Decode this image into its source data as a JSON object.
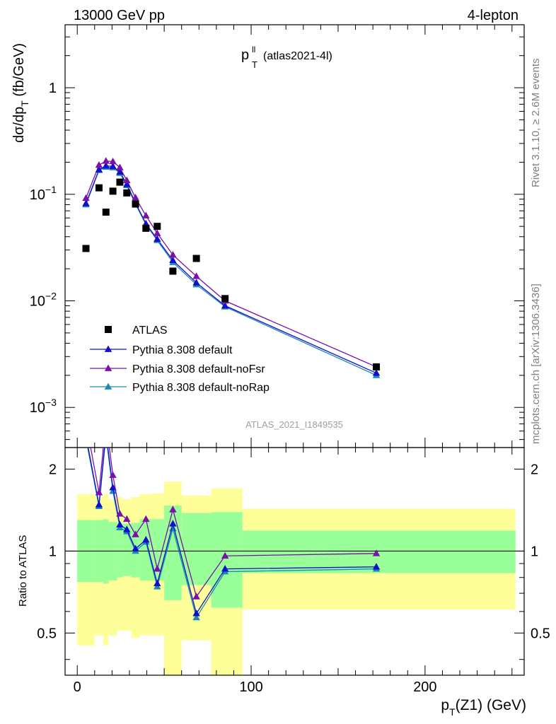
{
  "header": {
    "energy_label": "13000 GeV pp",
    "process_label": "4-lepton",
    "title_main": "p",
    "title_sup": "ll",
    "title_sub": "T",
    "title_suffix": "(atlas2021-4l)",
    "side_rivet": "Rivet 3.1.10, ≥ 2.6M events",
    "side_mcplots": "mcplots.cern.ch [arXiv:1306.3436]",
    "watermark": "ATLAS_2021_I1849535"
  },
  "colors": {
    "data": "#000000",
    "default": "#1010cc",
    "noFsr": "#7a10a8",
    "noRap": "#1a8ab0",
    "band_inner": "#99ff99",
    "band_outer": "#ffff99"
  },
  "chart_data": [
    {
      "type": "scatter",
      "panel": "main",
      "title": "p_T^ll (atlas2021-4l)",
      "xlabel": "p_T(Z1) (GeV)",
      "ylabel": "dσ/dp_T (fb/GeV)",
      "xlim": [
        -7,
        257
      ],
      "ylim": [
        0.00042,
        3.9
      ],
      "yscale": "log",
      "y_ticks": [
        "1",
        "10",
        "10",
        "10"
      ],
      "y_tick_exponents": [
        "",
        "−1",
        "−2",
        "−3"
      ],
      "y_tick_values": [
        1,
        0.1,
        0.01,
        0.001
      ],
      "legend_position": "lower-left",
      "series": [
        {
          "name": "ATLAS",
          "marker": "square",
          "x": [
            5,
            12.5,
            16.5,
            20.5,
            24.5,
            28.5,
            33.5,
            39.5,
            46,
            55,
            68.5,
            85,
            172
          ],
          "y": [
            0.031,
            0.115,
            0.068,
            0.107,
            0.13,
            0.103,
            0.081,
            0.048,
            0.05,
            0.019,
            0.025,
            0.0105,
            0.0024
          ]
        },
        {
          "name": "Pythia 8.308 default",
          "marker": "triangle",
          "x": [
            5,
            12.5,
            16.5,
            20.5,
            24.5,
            28.5,
            33.5,
            39.5,
            46,
            55,
            68.5,
            85,
            172
          ],
          "y": [
            0.082,
            0.17,
            0.185,
            0.183,
            0.162,
            0.124,
            0.083,
            0.053,
            0.038,
            0.024,
            0.0148,
            0.009,
            0.0021
          ]
        },
        {
          "name": "Pythia 8.308 default-noFsr",
          "marker": "triangle",
          "x": [
            5,
            12.5,
            16.5,
            20.5,
            24.5,
            28.5,
            33.5,
            39.5,
            46,
            55,
            68.5,
            85,
            172
          ],
          "y": [
            0.092,
            0.188,
            0.205,
            0.203,
            0.178,
            0.135,
            0.093,
            0.063,
            0.043,
            0.027,
            0.017,
            0.01,
            0.0024
          ]
        },
        {
          "name": "Pythia 8.308 default-noRap",
          "marker": "triangle",
          "x": [
            5,
            12.5,
            16.5,
            20.5,
            24.5,
            28.5,
            33.5,
            39.5,
            46,
            55,
            68.5,
            85,
            172
          ],
          "y": [
            0.08,
            0.168,
            0.18,
            0.178,
            0.158,
            0.121,
            0.081,
            0.052,
            0.037,
            0.023,
            0.0142,
            0.0088,
            0.002
          ]
        }
      ]
    },
    {
      "type": "line",
      "panel": "ratio",
      "ylabel": "Ratio to ATLAS",
      "xlabel": "p_T(Z1) (GeV)",
      "xlim": [
        -7,
        257
      ],
      "ylim": [
        0.35,
        2.4
      ],
      "yscale": "log",
      "y_ticks": [
        "0.5",
        "1",
        "2"
      ],
      "y_tick_values": [
        0.5,
        1,
        2
      ],
      "x_ticks": [
        "0",
        "100",
        "200"
      ],
      "x_tick_values": [
        0,
        100,
        200
      ],
      "bands": [
        {
          "x0": 0,
          "x1": 10,
          "inner": [
            0.77,
            1.3
          ],
          "outer": [
            0.45,
            1.62
          ]
        },
        {
          "x0": 10,
          "x1": 15,
          "inner": [
            0.77,
            1.3
          ],
          "outer": [
            0.49,
            1.58
          ]
        },
        {
          "x0": 15,
          "x1": 18,
          "inner": [
            0.76,
            1.31
          ],
          "outer": [
            0.45,
            1.62
          ]
        },
        {
          "x0": 18,
          "x1": 23,
          "inner": [
            0.78,
            1.28
          ],
          "outer": [
            0.49,
            1.55
          ]
        },
        {
          "x0": 23,
          "x1": 26,
          "inner": [
            0.8,
            1.26
          ],
          "outer": [
            0.51,
            1.58
          ]
        },
        {
          "x0": 26,
          "x1": 31,
          "inner": [
            0.81,
            1.26
          ],
          "outer": [
            0.51,
            1.55
          ]
        },
        {
          "x0": 31,
          "x1": 36,
          "inner": [
            0.8,
            1.27
          ],
          "outer": [
            0.48,
            1.58
          ]
        },
        {
          "x0": 36,
          "x1": 43,
          "inner": [
            0.78,
            1.31
          ],
          "outer": [
            0.49,
            1.62
          ]
        },
        {
          "x0": 43,
          "x1": 50,
          "inner": [
            0.78,
            1.31
          ],
          "outer": [
            0.49,
            1.63
          ]
        },
        {
          "x0": 50,
          "x1": 60,
          "inner": [
            0.66,
            1.47
          ],
          "outer": [
            0.32,
            1.8
          ]
        },
        {
          "x0": 60,
          "x1": 77,
          "inner": [
            0.75,
            1.38
          ],
          "outer": [
            0.47,
            1.6
          ]
        },
        {
          "x0": 77,
          "x1": 95,
          "inner": [
            0.62,
            1.39
          ],
          "outer": [
            0.32,
            1.7
          ]
        },
        {
          "x0": 95,
          "x1": 252,
          "inner": [
            0.83,
            1.19
          ],
          "outer": [
            0.61,
            1.43
          ]
        }
      ],
      "series": [
        {
          "name": "Pythia 8.308 default",
          "x": [
            5,
            12.5,
            16.5,
            20.5,
            24.5,
            28.5,
            33.5,
            39.5,
            46,
            55,
            68.5,
            85,
            172
          ],
          "y": [
            2.65,
            1.48,
            2.72,
            1.71,
            1.25,
            1.2,
            1.02,
            1.1,
            0.76,
            1.26,
            0.59,
            0.86,
            0.875
          ]
        },
        {
          "name": "Pythia 8.308 default-noFsr",
          "x": [
            5,
            12.5,
            16.5,
            20.5,
            24.5,
            28.5,
            33.5,
            39.5,
            46,
            55,
            68.5,
            85,
            172
          ],
          "y": [
            2.97,
            1.64,
            3.01,
            1.9,
            1.37,
            1.31,
            1.15,
            1.31,
            0.86,
            1.42,
            0.68,
            0.96,
            0.98
          ]
        },
        {
          "name": "Pythia 8.308 default-noRap",
          "x": [
            5,
            12.5,
            16.5,
            20.5,
            24.5,
            28.5,
            33.5,
            39.5,
            46,
            55,
            68.5,
            85,
            172
          ],
          "y": [
            2.58,
            1.46,
            2.65,
            1.66,
            1.22,
            1.18,
            1.0,
            1.08,
            0.74,
            1.21,
            0.57,
            0.84,
            0.86
          ]
        }
      ]
    }
  ]
}
